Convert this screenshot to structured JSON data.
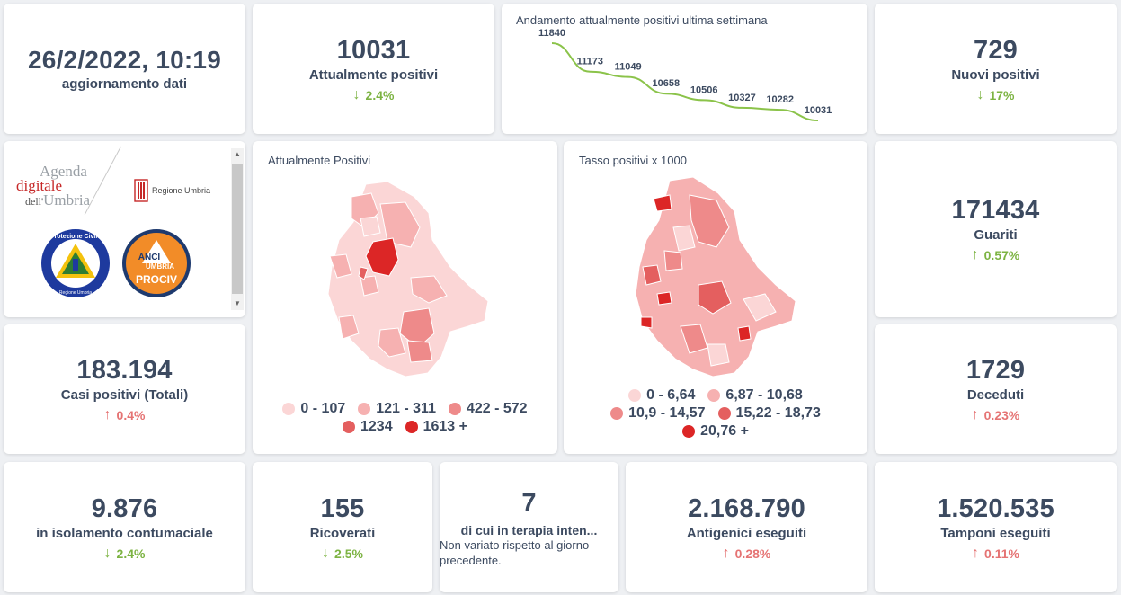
{
  "update": {
    "datetime": "26/2/2022, 10:19",
    "label": "aggiornamento dati"
  },
  "attualmente_positivi": {
    "value": "10031",
    "label": "Attualmente positivi",
    "delta": "2.4%",
    "direction": "down"
  },
  "trend": {
    "title": "Andamento attualmente positivi ultima settimana",
    "chart_data": {
      "type": "line",
      "title": "Andamento attualmente positivi ultima settimana",
      "values": [
        11840,
        11173,
        11049,
        10658,
        10506,
        10327,
        10282,
        10031
      ],
      "labels": [
        "11840",
        "11173",
        "11049",
        "10658",
        "10506",
        "10327",
        "10282",
        "10031"
      ],
      "color": "#8bc34a"
    }
  },
  "nuovi_positivi": {
    "value": "729",
    "label": "Nuovi positivi",
    "delta": "17%",
    "direction": "down"
  },
  "logos": {
    "agenda_line1": "Agenda",
    "agenda_line2": "digitale",
    "agenda_line3_a": "dell'",
    "agenda_line3_b": "Umbria",
    "regione": "Regione Umbria",
    "protezione_top": "Protezione Civile",
    "protezione_bottom": "Regione Umbria",
    "anci_1": "ANCI",
    "anci_2": "UMBRIA",
    "anci_3": "PROCIV"
  },
  "map_positivi": {
    "title": "Attualmente Positivi",
    "legend": [
      {
        "label": "0 - 107",
        "color": "#fbd6d6"
      },
      {
        "label": "121 - 311",
        "color": "#f6b1b1"
      },
      {
        "label": "422 - 572",
        "color": "#ee8a8a"
      },
      {
        "label": "1234",
        "color": "#e45f5f"
      },
      {
        "label": "1613 +",
        "color": "#dc2626"
      }
    ]
  },
  "map_tasso": {
    "title": "Tasso positivi x 1000",
    "legend": [
      {
        "label": "0 - 6,64",
        "color": "#fbd6d6"
      },
      {
        "label": "6,87 - 10,68",
        "color": "#f6b1b1"
      },
      {
        "label": "10,9 - 14,57",
        "color": "#ee8a8a"
      },
      {
        "label": "15,22 - 18,73",
        "color": "#e45f5f"
      },
      {
        "label": "20,76 +",
        "color": "#dc2626"
      }
    ]
  },
  "guariti": {
    "value": "171434",
    "label": "Guariti",
    "delta": "0.57%",
    "direction": "up-green"
  },
  "casi_totali": {
    "value": "183.194",
    "label": "Casi positivi (Totali)",
    "delta": "0.4%",
    "direction": "up"
  },
  "deceduti": {
    "value": "1729",
    "label": "Deceduti",
    "delta": "0.23%",
    "direction": "up"
  },
  "isolamento": {
    "value": "9.876",
    "label": "in isolamento contumaciale",
    "delta": "2.4%",
    "direction": "down"
  },
  "ricoverati": {
    "value": "155",
    "label": "Ricoverati",
    "delta": "2.5%",
    "direction": "down"
  },
  "terapia": {
    "value": "7",
    "label": "di cui in terapia inten...",
    "note": "Non variato rispetto al giorno precedente."
  },
  "antigenici": {
    "value": "2.168.790",
    "label": "Antigenici eseguiti",
    "delta": "0.28%",
    "direction": "up"
  },
  "tamponi": {
    "value": "1.520.535",
    "label": "Tamponi eseguiti",
    "delta": "0.11%",
    "direction": "up"
  },
  "icons": {
    "down": "arrow-down-icon",
    "up": "arrow-up-icon"
  }
}
